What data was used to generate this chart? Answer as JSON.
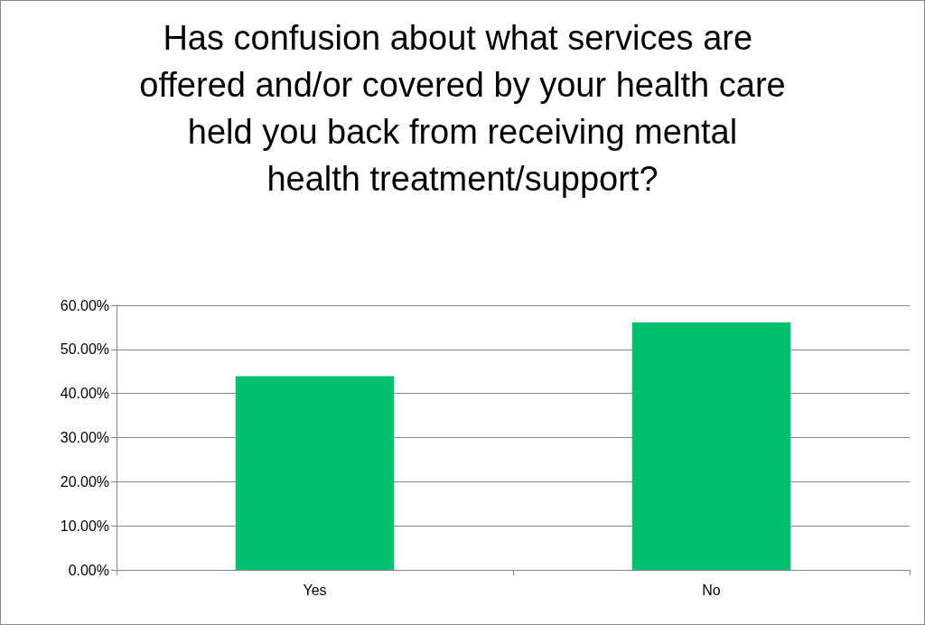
{
  "chart_data": {
    "type": "bar",
    "title": "Has confusion about what services are offered and/or covered by your health care held you back from receiving mental health treatment/support?",
    "categories": [
      "Yes",
      "No"
    ],
    "values": [
      43.9,
      56.1
    ],
    "color": "#00bf6f",
    "ylim": [
      0,
      60
    ],
    "yticks": [
      {
        "value": 0,
        "label": "0.00%"
      },
      {
        "value": 10,
        "label": "10.00%"
      },
      {
        "value": 20,
        "label": "20.00%"
      },
      {
        "value": 30,
        "label": "30.00%"
      },
      {
        "value": 40,
        "label": "40.00%"
      },
      {
        "value": 50,
        "label": "50.00%"
      },
      {
        "value": 60,
        "label": "60.00%"
      }
    ],
    "grid": "y"
  }
}
